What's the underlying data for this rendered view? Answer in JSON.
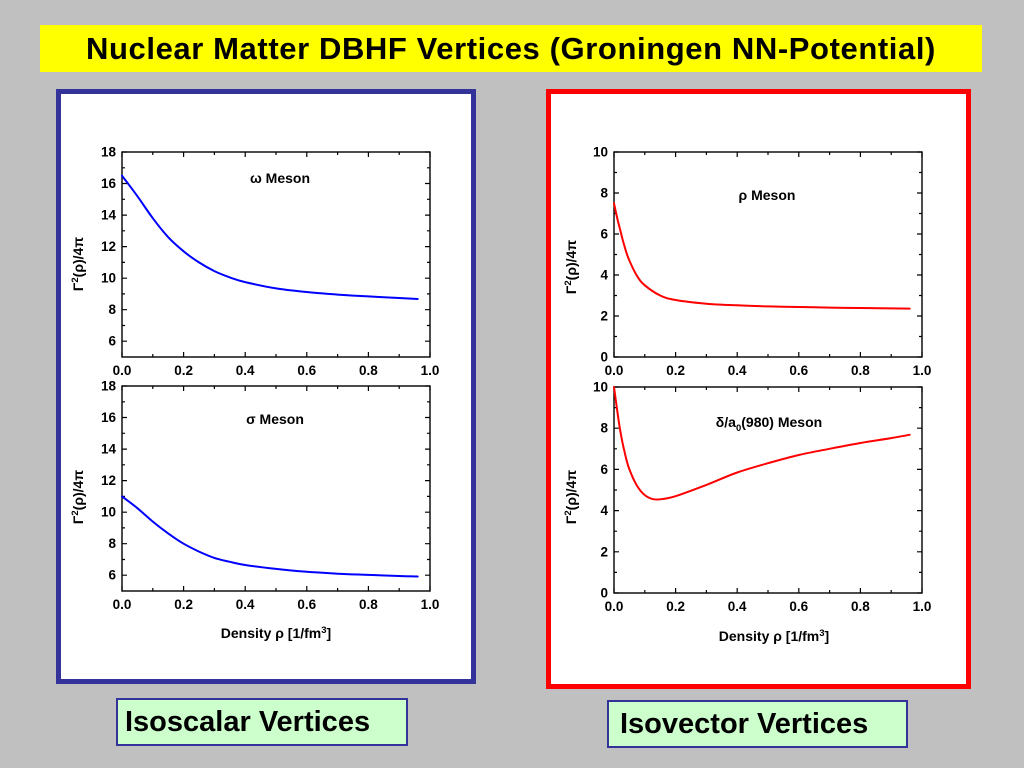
{
  "slide": {
    "title": "Nuclear Matter DBHF Vertices (Groningen NN-Potential)"
  },
  "colors": {
    "background": "#c0c0c0",
    "title_bar": "#ffff00",
    "isoscalar_border": "#333399",
    "isovector_border": "#ff0000",
    "caption_fill": "#ccffcc",
    "caption_border": "#333399"
  },
  "panels": {
    "isoscalar": {
      "caption": "Isoscalar Vertices"
    },
    "isovector": {
      "caption": "Isovector Vertices"
    }
  },
  "chart_data": [
    {
      "type": "line",
      "annotation": [
        {
          "t": "ω Meson"
        }
      ],
      "ylabel": [
        {
          "t": "Γ"
        },
        {
          "t": "2",
          "sup": true
        },
        {
          "t": "(ρ)/4π"
        }
      ],
      "xlim": [
        0,
        1
      ],
      "ylim": [
        5,
        18
      ],
      "x_ticks": [
        "0.0",
        "0.2",
        "0.4",
        "0.6",
        "0.8",
        "1.0"
      ],
      "y_ticks": [
        "6",
        "8",
        "10",
        "12",
        "14",
        "16",
        "18"
      ],
      "grid": false,
      "x": [
        0,
        0.05,
        0.1,
        0.15,
        0.2,
        0.25,
        0.3,
        0.35,
        0.4,
        0.5,
        0.6,
        0.7,
        0.8,
        0.9,
        0.96
      ],
      "series": [
        {
          "color": "#0000ff",
          "values": [
            16.5,
            15.2,
            13.8,
            12.6,
            11.7,
            11.0,
            10.45,
            10.05,
            9.75,
            9.35,
            9.12,
            8.96,
            8.84,
            8.74,
            8.68
          ]
        }
      ]
    },
    {
      "type": "line",
      "annotation": [
        {
          "t": "σ Meson"
        }
      ],
      "ylabel": [
        {
          "t": "Γ"
        },
        {
          "t": "2",
          "sup": true
        },
        {
          "t": "(ρ)/4π"
        }
      ],
      "xlabel": [
        {
          "t": "Density ρ [1/fm"
        },
        {
          "t": "3",
          "sup": true
        },
        {
          "t": "]"
        }
      ],
      "xlim": [
        0,
        1
      ],
      "ylim": [
        5,
        18
      ],
      "x_ticks": [
        "0.0",
        "0.2",
        "0.4",
        "0.6",
        "0.8",
        "1.0"
      ],
      "y_ticks": [
        "6",
        "8",
        "10",
        "12",
        "14",
        "16",
        "18"
      ],
      "grid": false,
      "x": [
        0,
        0.05,
        0.1,
        0.15,
        0.2,
        0.25,
        0.3,
        0.35,
        0.4,
        0.5,
        0.6,
        0.7,
        0.8,
        0.9,
        0.96
      ],
      "series": [
        {
          "color": "#0000ff",
          "values": [
            11.0,
            10.25,
            9.4,
            8.65,
            8.0,
            7.5,
            7.1,
            6.85,
            6.65,
            6.4,
            6.22,
            6.1,
            6.02,
            5.95,
            5.92
          ]
        }
      ]
    },
    {
      "type": "line",
      "annotation": [
        {
          "t": "ρ Meson"
        }
      ],
      "ylabel": [
        {
          "t": "Γ"
        },
        {
          "t": "2",
          "sup": true
        },
        {
          "t": "(ρ)/4π"
        }
      ],
      "xlim": [
        0,
        1
      ],
      "ylim": [
        0,
        10
      ],
      "x_ticks": [
        "0.0",
        "0.2",
        "0.4",
        "0.6",
        "0.8",
        "1.0"
      ],
      "y_ticks": [
        "0",
        "2",
        "4",
        "6",
        "8",
        "10"
      ],
      "grid": false,
      "x": [
        0,
        0.01,
        0.02,
        0.035,
        0.05,
        0.075,
        0.1,
        0.15,
        0.2,
        0.3,
        0.4,
        0.5,
        0.6,
        0.7,
        0.8,
        0.9,
        0.96
      ],
      "series": [
        {
          "color": "#ff0000",
          "values": [
            7.5,
            6.8,
            6.2,
            5.35,
            4.7,
            3.95,
            3.5,
            3.0,
            2.78,
            2.6,
            2.52,
            2.47,
            2.44,
            2.41,
            2.39,
            2.37,
            2.36
          ]
        }
      ]
    },
    {
      "type": "line",
      "annotation": [
        {
          "t": "δ/a"
        },
        {
          "t": "0",
          "sub": true
        },
        {
          "t": "(980) Meson"
        }
      ],
      "ylabel": [
        {
          "t": "Γ"
        },
        {
          "t": "2",
          "sup": true
        },
        {
          "t": "(ρ)/4π"
        }
      ],
      "xlabel": [
        {
          "t": "Density ρ [1/fm"
        },
        {
          "t": "3",
          "sup": true
        },
        {
          "t": "]"
        }
      ],
      "xlim": [
        0,
        1
      ],
      "ylim": [
        0,
        10
      ],
      "x_ticks": [
        "0.0",
        "0.2",
        "0.4",
        "0.6",
        "0.8",
        "1.0"
      ],
      "y_ticks": [
        "0",
        "2",
        "4",
        "6",
        "8",
        "10"
      ],
      "grid": false,
      "x": [
        0,
        0.01,
        0.02,
        0.035,
        0.05,
        0.075,
        0.1,
        0.13,
        0.16,
        0.2,
        0.3,
        0.4,
        0.5,
        0.6,
        0.7,
        0.8,
        0.9,
        0.96
      ],
      "series": [
        {
          "color": "#ff0000",
          "values": [
            10.0,
            8.9,
            7.9,
            6.8,
            6.0,
            5.2,
            4.75,
            4.55,
            4.57,
            4.7,
            5.25,
            5.85,
            6.3,
            6.7,
            7.0,
            7.28,
            7.52,
            7.68
          ]
        }
      ]
    }
  ]
}
